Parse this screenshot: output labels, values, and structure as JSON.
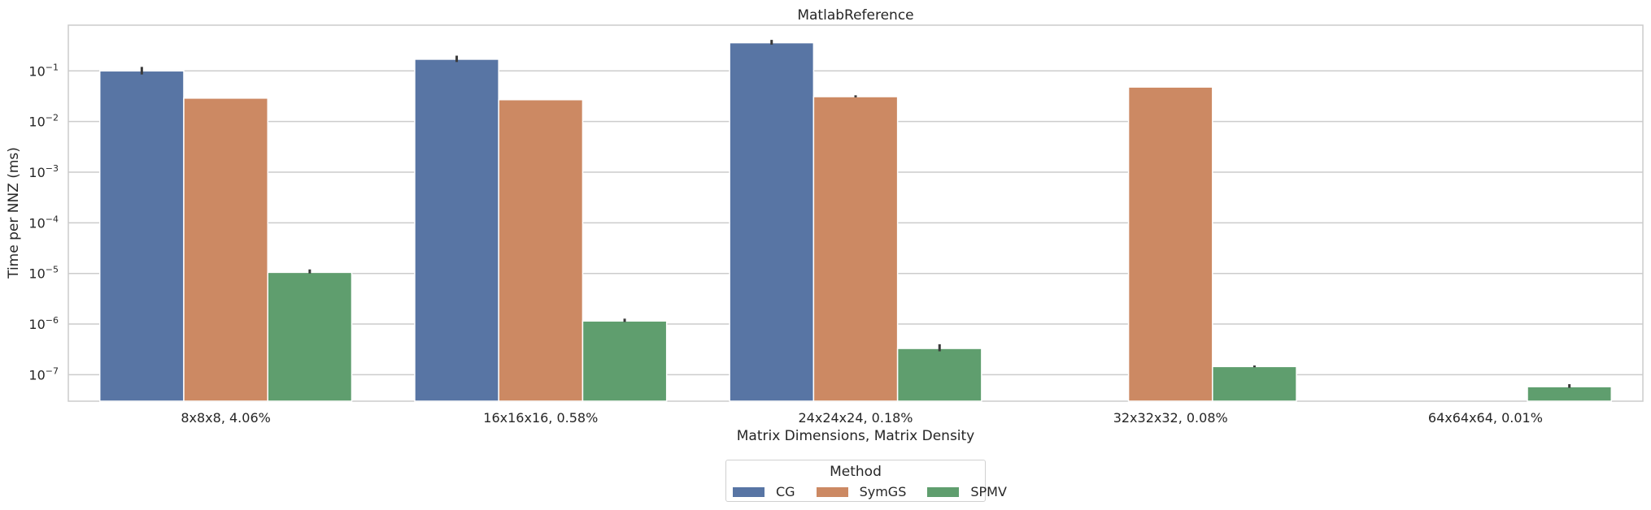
{
  "chart_data": {
    "type": "bar",
    "title": "MatlabReference",
    "xlabel": "Matrix Dimensions, Matrix Density",
    "ylabel": "Time per NNZ (ms)",
    "yscale": "log",
    "ylim": [
      3e-08,
      0.8
    ],
    "yticks": [
      {
        "value": 1e-07,
        "base": "10",
        "exp": "−7"
      },
      {
        "value": 1e-06,
        "base": "10",
        "exp": "−6"
      },
      {
        "value": 1e-05,
        "base": "10",
        "exp": "−5"
      },
      {
        "value": 0.0001,
        "base": "10",
        "exp": "−4"
      },
      {
        "value": 0.001,
        "base": "10",
        "exp": "−3"
      },
      {
        "value": 0.01,
        "base": "10",
        "exp": "−2"
      },
      {
        "value": 0.1,
        "base": "10",
        "exp": "−1"
      }
    ],
    "grid": true,
    "legend_position": "bottom-center",
    "categories": [
      "8x8x8, 4.06%",
      "16x16x16, 0.58%",
      "24x24x24, 0.18%",
      "32x32x32, 0.08%",
      "64x64x64, 0.01%"
    ],
    "series": [
      {
        "name": "CG",
        "color": "#5875a4",
        "values": [
          0.1,
          0.17,
          0.36,
          null,
          null
        ],
        "err_low": [
          0.085,
          0.15,
          0.33,
          null,
          null
        ],
        "err_high": [
          0.12,
          0.2,
          0.41,
          null,
          null
        ]
      },
      {
        "name": "SymGS",
        "color": "#cc8963",
        "values": [
          0.029,
          0.027,
          0.031,
          0.048,
          null
        ],
        "err_low": [
          null,
          null,
          0.03,
          null,
          null
        ],
        "err_high": [
          null,
          null,
          0.033,
          null,
          null
        ]
      },
      {
        "name": "SPMV",
        "color": "#5f9e6e",
        "values": [
          1.05e-05,
          1.15e-06,
          3.3e-07,
          1.45e-07,
          5.8e-08
        ],
        "err_low": [
          1e-05,
          1.1e-06,
          2.9e-07,
          1.4e-07,
          5.5e-08
        ],
        "err_high": [
          1.2e-05,
          1.28e-06,
          4e-07,
          1.52e-07,
          6.5e-08
        ]
      }
    ]
  },
  "legend": {
    "title": "Method",
    "items": [
      {
        "label": "CG",
        "color": "#5875a4"
      },
      {
        "label": "SymGS",
        "color": "#cc8963"
      },
      {
        "label": "SPMV",
        "color": "#5f9e6e"
      }
    ]
  }
}
